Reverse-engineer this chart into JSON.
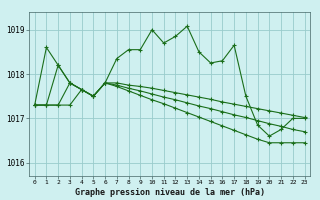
{
  "title": "Graphe pression niveau de la mer (hPa)",
  "bg_color": "#cff0f0",
  "grid_color": "#99cccc",
  "line_color": "#1a6e1a",
  "x_ticks": [
    0,
    1,
    2,
    3,
    4,
    5,
    6,
    7,
    8,
    9,
    10,
    11,
    12,
    13,
    14,
    15,
    16,
    17,
    18,
    19,
    20,
    21,
    22,
    23
  ],
  "y_ticks": [
    1016,
    1017,
    1018,
    1019
  ],
  "ylim": [
    1015.7,
    1019.4
  ],
  "xlim": [
    -0.5,
    23.5
  ],
  "line1_y": [
    1017.3,
    1018.6,
    1018.2,
    1017.8,
    1017.65,
    1017.5,
    1017.8,
    1018.35,
    1018.55,
    1018.55,
    1019.0,
    1018.7,
    1018.85,
    1019.08,
    1018.5,
    1018.25,
    1018.3,
    1018.65,
    1017.5,
    1016.85,
    1016.6,
    1016.75,
    1017.0,
    1017.0
  ],
  "line2_y": [
    1017.3,
    1017.3,
    1018.2,
    1017.8,
    1017.65,
    1017.5,
    1017.8,
    1017.8,
    1017.75,
    1017.72,
    1017.68,
    1017.63,
    1017.58,
    1017.53,
    1017.48,
    1017.43,
    1017.37,
    1017.32,
    1017.27,
    1017.22,
    1017.17,
    1017.12,
    1017.07,
    1017.02
  ],
  "line3_y": [
    1017.3,
    1017.3,
    1017.3,
    1017.8,
    1017.65,
    1017.5,
    1017.8,
    1017.75,
    1017.68,
    1017.62,
    1017.55,
    1017.48,
    1017.42,
    1017.35,
    1017.28,
    1017.22,
    1017.15,
    1017.08,
    1017.02,
    1016.95,
    1016.88,
    1016.82,
    1016.75,
    1016.7
  ],
  "line4_y": [
    1017.3,
    1017.3,
    1017.3,
    1017.3,
    1017.65,
    1017.5,
    1017.8,
    1017.72,
    1017.62,
    1017.52,
    1017.42,
    1017.33,
    1017.23,
    1017.13,
    1017.03,
    1016.93,
    1016.83,
    1016.73,
    1016.63,
    1016.53,
    1016.45,
    1016.45,
    1016.45,
    1016.45
  ]
}
